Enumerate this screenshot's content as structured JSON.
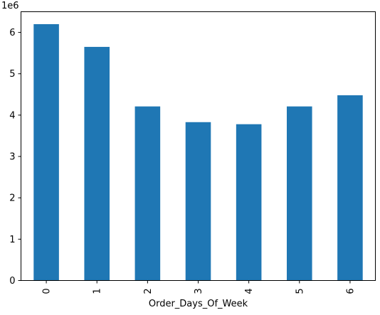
{
  "chart_data": {
    "type": "bar",
    "categories": [
      "0",
      "1",
      "2",
      "3",
      "4",
      "5",
      "6"
    ],
    "values": [
      6200000,
      5650000,
      4210000,
      3830000,
      3780000,
      4210000,
      4480000
    ],
    "xlabel": "Order_Days_Of_Week",
    "ylabel": "",
    "ylim": [
      0,
      6500000
    ],
    "yticks": [
      0,
      1,
      2,
      3,
      4,
      5,
      6
    ],
    "y_offset_label": "1e6",
    "y_scale": 1000000,
    "bar_color": "#1f77b4",
    "grid": false,
    "legend": "none"
  }
}
